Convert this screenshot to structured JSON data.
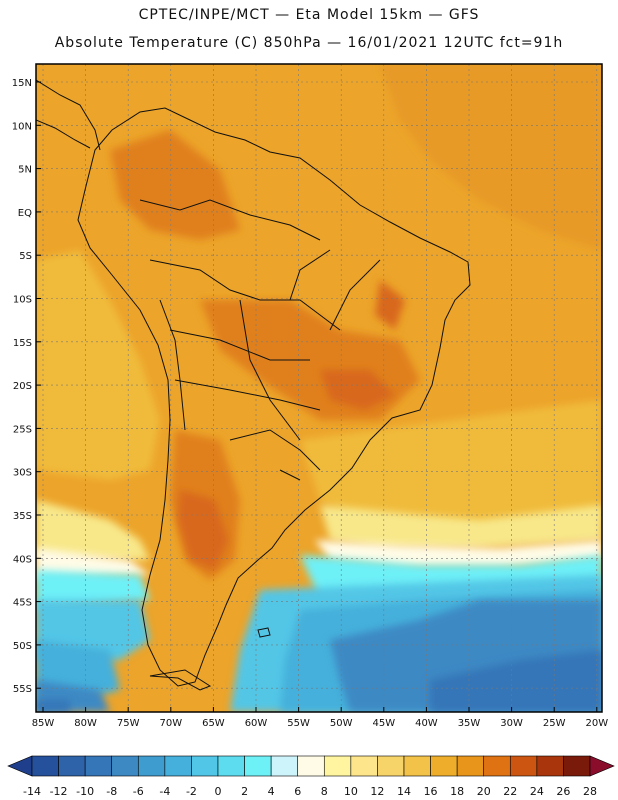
{
  "header": {
    "line1": "CPTEC/INPE/MCT —  Eta Model 15km — GFS",
    "line2": "Absolute Temperature (C) 850hPa — 16/01/2021 12UTC fct=91h"
  },
  "axes": {
    "lat_labels": [
      "15N",
      "10N",
      "5N",
      "EQ",
      "5S",
      "10S",
      "15S",
      "20S",
      "25S",
      "30S",
      "35S",
      "40S",
      "45S",
      "50S",
      "55S"
    ],
    "lon_labels": [
      "85W",
      "80W",
      "75W",
      "70W",
      "65W",
      "60W",
      "55W",
      "50W",
      "45W",
      "40W",
      "35W",
      "30W",
      "25W",
      "20W"
    ]
  },
  "colorbar": {
    "labels": [
      "-14",
      "-12",
      "-10",
      "-8",
      "-6",
      "-4",
      "-2",
      "0",
      "2",
      "4",
      "6",
      "8",
      "10",
      "12",
      "14",
      "16",
      "18",
      "20",
      "22",
      "24",
      "26",
      "28"
    ],
    "colors": [
      "#1f3f8c",
      "#25509c",
      "#2e63aa",
      "#3576b8",
      "#3c89c4",
      "#3f9ccf",
      "#45b0db",
      "#52c6e6",
      "#5ddcef",
      "#6ef0f7",
      "#cdf3fb",
      "#fffbe6",
      "#fff5a0",
      "#fde58c",
      "#f7d46a",
      "#f2c249",
      "#eeae2b",
      "#e8951c",
      "#df7314",
      "#cc5611",
      "#a9350c",
      "#7a1a0a",
      "#8a0d2c"
    ]
  },
  "palette": {
    "ocean_far": "#e79a25",
    "land_base": "#eca42a",
    "hot": "#e0801a",
    "very_hot": "#d8681a",
    "warm_pale": "#f0bb3a",
    "yellow": "#f8e88a",
    "cream": "#fffbe6",
    "cyan": "#6ef0f7",
    "cyan_mid": "#52c6e6",
    "blue_light": "#45b0db",
    "blue_mid": "#3c89c4",
    "blue_dark": "#3576b8",
    "border": "#111111"
  }
}
